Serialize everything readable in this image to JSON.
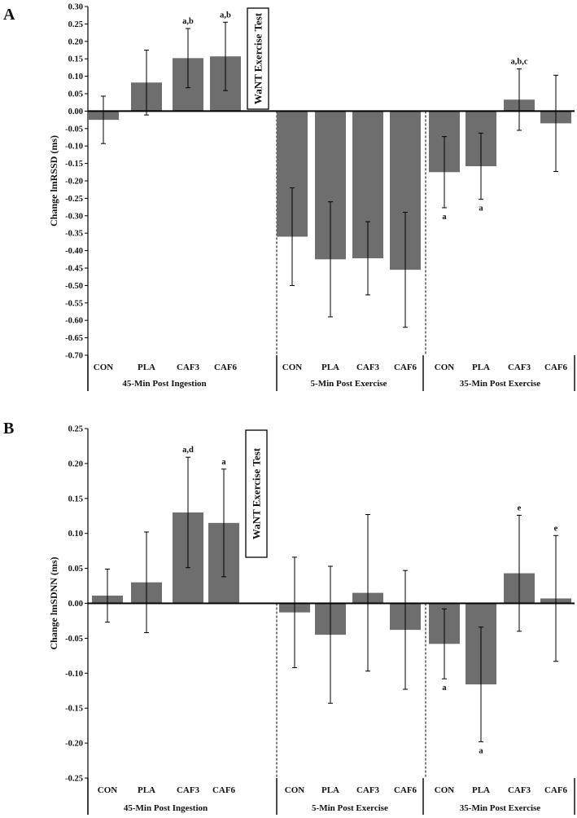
{
  "chart_data": [
    {
      "type": "bar",
      "panel": "A",
      "ylabel": "Change lmRSSD (ms)",
      "ylim": [
        -0.7,
        0.3
      ],
      "yticks": [
        0.3,
        0.25,
        0.2,
        0.15,
        0.1,
        0.05,
        0.0,
        -0.05,
        -0.1,
        -0.15,
        -0.2,
        -0.25,
        -0.3,
        -0.35,
        -0.4,
        -0.45,
        -0.5,
        -0.55,
        -0.6,
        -0.65,
        -0.7
      ],
      "ytick_labels": [
        "0.30",
        "0.25",
        "0.20",
        "0.15",
        "0.10",
        "0.05",
        "0.00",
        "-0.05",
        "-0.10",
        "-0.15",
        "-0.20",
        "-0.25",
        "-0.30",
        "-0.35",
        "-0.40",
        "-0.45",
        "-0.50",
        "-0.55",
        "-0.60",
        "-0.65",
        "-0.70"
      ],
      "wan_label": "WaNT Exercise Test",
      "groups": [
        {
          "name": "45-Min Post Ingestion",
          "categories": [
            "CON",
            "PLA",
            "CAF3",
            "CAF6"
          ],
          "values": [
            -0.025,
            0.082,
            0.152,
            0.157
          ],
          "errors": [
            0.068,
            0.093,
            0.085,
            0.098
          ],
          "annotations": [
            "",
            "",
            "a,b",
            "a,b"
          ],
          "ann_pos": [
            "",
            "",
            "above",
            "above"
          ]
        },
        {
          "name": "5-Min Post Exercise",
          "categories": [
            "CON",
            "PLA",
            "CAF3",
            "CAF6"
          ],
          "values": [
            -0.36,
            -0.425,
            -0.422,
            -0.455
          ],
          "errors": [
            0.14,
            0.165,
            0.105,
            0.165
          ],
          "annotations": [
            "",
            "",
            "",
            ""
          ],
          "ann_pos": [
            "",
            "",
            "",
            ""
          ]
        },
        {
          "name": "35-Min Post Exercise",
          "categories": [
            "CON",
            "PLA",
            "CAF3",
            "CAF6"
          ],
          "values": [
            -0.175,
            -0.158,
            0.033,
            -0.035
          ],
          "errors": [
            0.102,
            0.095,
            0.088,
            0.138
          ],
          "annotations": [
            "a",
            "a",
            "a,b,c",
            ""
          ],
          "ann_pos": [
            "below",
            "below",
            "above",
            ""
          ]
        }
      ]
    },
    {
      "type": "bar",
      "panel": "B",
      "ylabel": "Change lmSDNN (ms)",
      "ylim": [
        -0.25,
        0.25
      ],
      "yticks": [
        0.25,
        0.2,
        0.15,
        0.1,
        0.05,
        0.0,
        -0.05,
        -0.1,
        -0.15,
        -0.2,
        -0.25
      ],
      "ytick_labels": [
        "0.25",
        "0.20",
        "0.15",
        "0.10",
        "0.05",
        "0.00",
        "-0.05",
        "-0.10",
        "-0.15",
        "-0.20",
        "-0.25"
      ],
      "wan_label": "WaNT Exercise Test",
      "groups": [
        {
          "name": "45-Min Post Ingestion",
          "categories": [
            "CON",
            "PLA",
            "CAF3",
            "CAF6"
          ],
          "values": [
            0.011,
            0.03,
            0.13,
            0.115
          ],
          "errors": [
            0.038,
            0.072,
            0.079,
            0.077
          ],
          "annotations": [
            "",
            "",
            "a,d",
            "a"
          ],
          "ann_pos": [
            "",
            "",
            "above",
            "above"
          ]
        },
        {
          "name": "5-Min Post Exercise",
          "categories": [
            "CON",
            "PLA",
            "CAF3",
            "CAF6"
          ],
          "values": [
            -0.013,
            -0.045,
            0.015,
            -0.038
          ],
          "errors": [
            0.079,
            0.098,
            0.112,
            0.085
          ],
          "annotations": [
            "",
            "",
            "",
            ""
          ],
          "ann_pos": [
            "",
            "",
            "",
            ""
          ]
        },
        {
          "name": "35-Min Post Exercise",
          "categories": [
            "CON",
            "PLA",
            "CAF3",
            "CAF6"
          ],
          "values": [
            -0.058,
            -0.116,
            0.043,
            0.007
          ],
          "errors": [
            0.05,
            0.082,
            0.083,
            0.09
          ],
          "annotations": [
            "a",
            "a",
            "e",
            "e"
          ],
          "ann_pos": [
            "below",
            "below",
            "above",
            "above"
          ]
        }
      ]
    }
  ],
  "colors": {
    "bar": "#6e6e6e",
    "axis": "#000000",
    "text": "#111111"
  }
}
